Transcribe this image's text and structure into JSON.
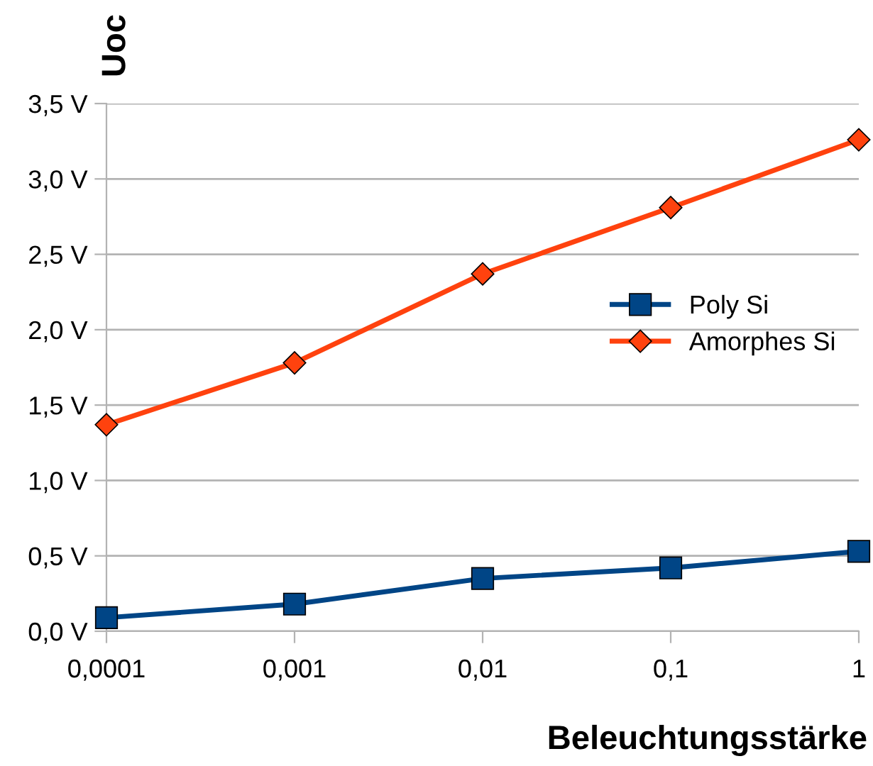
{
  "chart_data": {
    "type": "line",
    "xlabel": "Beleuchtungsstärke",
    "ylabel": "Uoc",
    "categories": [
      "0,0001",
      "0,001",
      "0,01",
      "0,1",
      "1"
    ],
    "series": [
      {
        "name": "Poly Si",
        "color": "#004586",
        "marker": "square",
        "values": [
          0.09,
          0.18,
          0.35,
          0.42,
          0.53
        ]
      },
      {
        "name": "Amorphes Si",
        "color": "#ff420e",
        "marker": "diamond",
        "values": [
          1.37,
          1.78,
          2.37,
          2.81,
          3.26
        ]
      }
    ],
    "ylim": [
      0,
      3.5
    ],
    "yticks": [
      {
        "value": 0,
        "label": "0,0 V"
      },
      {
        "value": 0.5,
        "label": "0,5 V"
      },
      {
        "value": 1,
        "label": "1,0 V"
      },
      {
        "value": 1.5,
        "label": "1,5 V"
      },
      {
        "value": 2,
        "label": "2,0 V"
      },
      {
        "value": 2.5,
        "label": "2,5 V"
      },
      {
        "value": 3,
        "label": "3,0 V"
      },
      {
        "value": 3.5,
        "label": "3,5 V"
      }
    ],
    "grid": "y",
    "legend": "right",
    "line_style": "solid"
  }
}
